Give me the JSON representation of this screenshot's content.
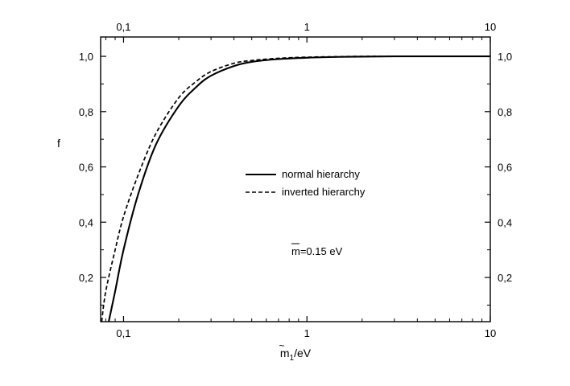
{
  "chart_data": {
    "type": "line",
    "xlabel": "m̃1/eV",
    "xlabel_parts": {
      "symbol": "m",
      "subscript": "1",
      "unit": "/eV"
    },
    "ylabel": "f",
    "x_scale": "log",
    "xlim": [
      0.075,
      10
    ],
    "ylim": [
      0.04,
      1.07
    ],
    "x_ticks": [
      0.1,
      1,
      10
    ],
    "x_tick_labels": [
      "0,1",
      "1",
      "10"
    ],
    "y_ticks": [
      0.2,
      0.4,
      0.6,
      0.8,
      1.0
    ],
    "y_tick_labels": [
      "0,2",
      "0,4",
      "0,6",
      "0,8",
      "1,0"
    ],
    "mirrored_axes": true,
    "grid": false,
    "legend_position": "center",
    "annotation": "=0.15 eV",
    "annotation_symbol": "m",
    "annotation_overline": true,
    "series": [
      {
        "name": "normal hierarchy",
        "line_style": "solid",
        "color": "#000000",
        "x": [
          0.083,
          0.09,
          0.1,
          0.12,
          0.15,
          0.2,
          0.25,
          0.3,
          0.4,
          0.5,
          0.7,
          1.0,
          1.5,
          2.0,
          3.0,
          5.0,
          10.0
        ],
        "y": [
          0.04,
          0.15,
          0.3,
          0.5,
          0.68,
          0.82,
          0.89,
          0.93,
          0.965,
          0.98,
          0.99,
          0.995,
          0.998,
          0.999,
          1.0,
          1.0,
          1.0
        ]
      },
      {
        "name": "inverted hierarchy",
        "line_style": "dashed",
        "color": "#000000",
        "x": [
          0.076,
          0.08,
          0.09,
          0.1,
          0.12,
          0.15,
          0.2,
          0.25,
          0.3,
          0.4,
          0.5,
          0.7,
          1.0,
          1.5,
          2.0,
          3.0,
          5.0,
          10.0
        ],
        "y": [
          0.04,
          0.15,
          0.3,
          0.42,
          0.57,
          0.72,
          0.85,
          0.91,
          0.945,
          0.975,
          0.985,
          0.993,
          0.997,
          0.999,
          1.0,
          1.0,
          1.0,
          1.0
        ]
      }
    ]
  }
}
